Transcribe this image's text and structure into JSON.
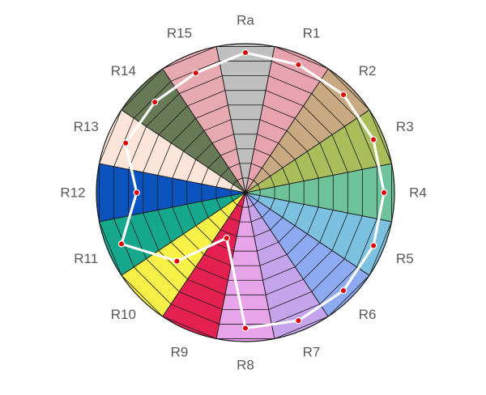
{
  "chart_data": {
    "type": "radar",
    "title": "",
    "categories": [
      "Ra",
      "R1",
      "R2",
      "R3",
      "R4",
      "R5",
      "R6",
      "R7",
      "R8",
      "R9",
      "R10",
      "R11",
      "R12",
      "R13",
      "R14",
      "R15"
    ],
    "rlim": [
      0,
      100
    ],
    "grid_steps": 10,
    "sector_colors": [
      "#bfbfbf",
      "#e8a4ae",
      "#c9a982",
      "#a9bd5a",
      "#6fc39a",
      "#7cc2e0",
      "#8eaaf2",
      "#c6a4ec",
      "#e8a4e8",
      "#e3204f",
      "#f8f248",
      "#15a88c",
      "#0a53be",
      "#fde5d9",
      "#687a55",
      "#e6aab0"
    ],
    "series": [
      {
        "color": "#ffffff",
        "marker_color": "#e00000",
        "values": [
          94,
          93,
          93,
          93,
          93,
          93,
          93,
          93,
          91,
          33,
          65,
          90,
          73,
          87,
          86,
          87
        ]
      }
    ],
    "legend": "none",
    "grid": true
  }
}
